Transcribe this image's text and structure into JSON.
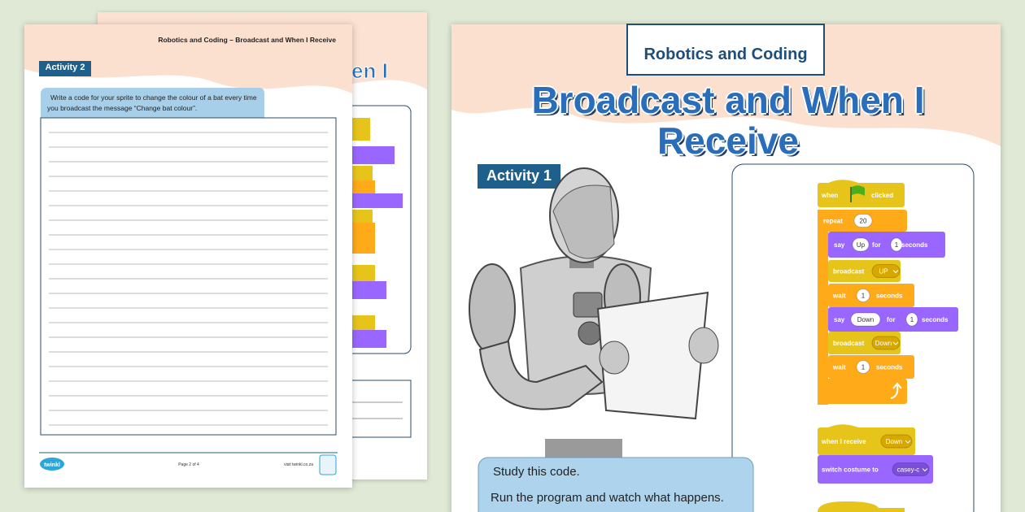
{
  "left_page": {
    "header": "Robotics and Coding – Broadcast and When I Receive",
    "activity": "Activity 2",
    "instruction": "Write a code for your sprite to change the colour of a bat every time you broadcast the message “Change bat colour”.",
    "footer": {
      "logo": "twinkl",
      "page": "Page 2 of 4",
      "url": "visit twinkl.co.za"
    }
  },
  "behind_page": {
    "title_fragment": "en I"
  },
  "right_page": {
    "subject": "Robotics and Coding",
    "title": "Broadcast and When I Receive",
    "activity": "Activity 1",
    "code": [
      {
        "parts": [
          "when",
          "clicked"
        ]
      },
      {
        "parts": [
          "repeat",
          "20"
        ]
      },
      {
        "parts": [
          "say",
          "Up",
          "for",
          "1",
          "seconds"
        ]
      },
      {
        "parts": [
          "broadcast",
          "UP"
        ]
      },
      {
        "parts": [
          "wait",
          "1",
          "seconds"
        ]
      },
      {
        "parts": [
          "say",
          "Down",
          "for",
          "1",
          "seconds"
        ]
      },
      {
        "parts": [
          "broadcast",
          "Down"
        ]
      },
      {
        "parts": [
          "wait",
          "1",
          "seconds"
        ]
      },
      {
        "parts": [
          "when I receive",
          "Down"
        ]
      },
      {
        "parts": [
          "switch costume to",
          "casey-c"
        ]
      }
    ],
    "instructions": [
      "Study this code.",
      "Run the program and watch what happens."
    ]
  }
}
